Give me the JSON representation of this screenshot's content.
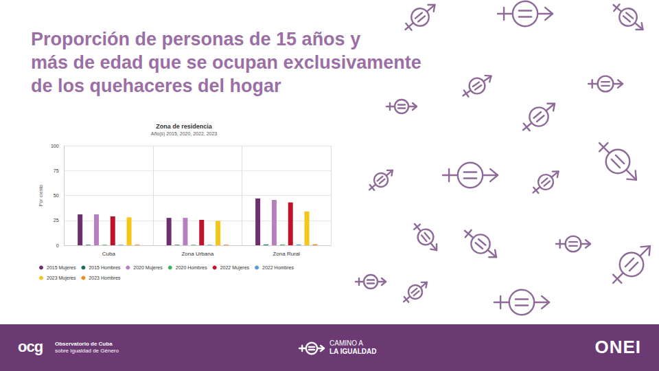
{
  "header": {
    "title_lines": [
      "Proporción de personas de 15 años y",
      "más de edad que se ocupan exclusivamente",
      "de los quehaceres del hogar"
    ]
  },
  "chart_data": {
    "type": "bar",
    "title": "Zona de residencia",
    "subtitle": "Año(s) 2015, 2020, 2022, 2023",
    "y_label": "Por ciento",
    "categories": [
      "Cuba",
      "Zona Urbana",
      "Zona Rural"
    ],
    "series": [
      {
        "name": "2015 Mujeres",
        "color": "#6d2f6d",
        "values": [
          31,
          27.5,
          47
        ]
      },
      {
        "name": "2015 Hombres",
        "color": "#1f6b5e",
        "values": [
          0.5,
          0.5,
          0.8
        ]
      },
      {
        "name": "2020 Mujeres",
        "color": "#b57fc0",
        "values": [
          31,
          27.5,
          45.5
        ]
      },
      {
        "name": "2020 Hombres",
        "color": "#3fb55a",
        "values": [
          0.5,
          0.5,
          0.8
        ]
      },
      {
        "name": "2022 Mujeres",
        "color": "#c0122a",
        "values": [
          29,
          25.5,
          43
        ]
      },
      {
        "name": "2022 Hombres",
        "color": "#5b9bd5",
        "values": [
          0.5,
          0.5,
          0.8
        ]
      },
      {
        "name": "2023 Mujeres",
        "color": "#f5c518",
        "values": [
          28,
          24.5,
          34
        ]
      },
      {
        "name": "2023 Hombres",
        "color": "#f08a24",
        "values": [
          0.6,
          0.6,
          1
        ]
      }
    ],
    "ylim": [
      0,
      100
    ],
    "yticks": [
      0,
      25,
      50,
      75,
      100
    ],
    "grid": true,
    "legend": "bottom"
  },
  "footer": {
    "logo_left": "ocg",
    "org_lines": [
      "Observatorio de Cuba",
      "sobre Igualdad de Género"
    ],
    "campaign_lines": [
      "CAMINO A",
      "LA IGUALDAD"
    ],
    "logo_right": "ONEI"
  }
}
